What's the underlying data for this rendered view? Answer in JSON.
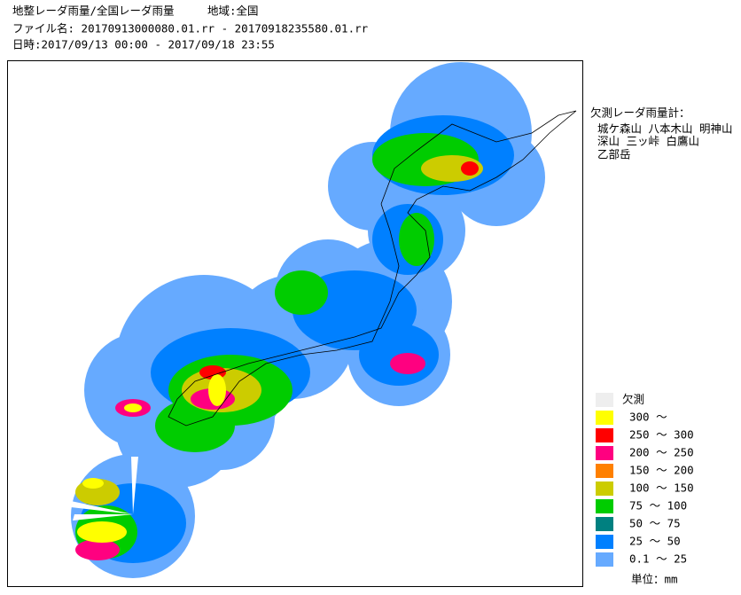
{
  "header": {
    "lines": [
      "地整レーダ雨量/全国レーダ雨量　　　地域:全国",
      "ファイル名: 20170913000080.01.rr - 20170918235580.01.rr",
      "日時:2017/09/13 00:00 - 2017/09/18 23:55"
    ]
  },
  "missing_radars": {
    "title": "欠測レーダ雨量計：",
    "lines": [
      "城ケ森山 八本木山 明神山",
      "深山 三ッ峠 白鷹山",
      "乙部岳"
    ]
  },
  "legend": {
    "entries": [
      {
        "label": "欠測",
        "color": "#eeeeee"
      },
      {
        "label": "300 ～",
        "color": "#ffff00"
      },
      {
        "label": "250 ～ 300",
        "color": "#ff0000"
      },
      {
        "label": "200 ～ 250",
        "color": "#ff0080"
      },
      {
        "label": "150 ～ 200",
        "color": "#ff8000"
      },
      {
        "label": "100 ～ 150",
        "color": "#cccc00"
      },
      {
        "label": "75 ～ 100",
        "color": "#00cc00"
      },
      {
        "label": "50 ～ 75",
        "color": "#008080"
      },
      {
        "label": "25 ～ 50",
        "color": "#0080ff"
      },
      {
        "label": "0.1 ～ 25",
        "color": "#66aaff"
      }
    ],
    "unit": "単位：mm"
  }
}
